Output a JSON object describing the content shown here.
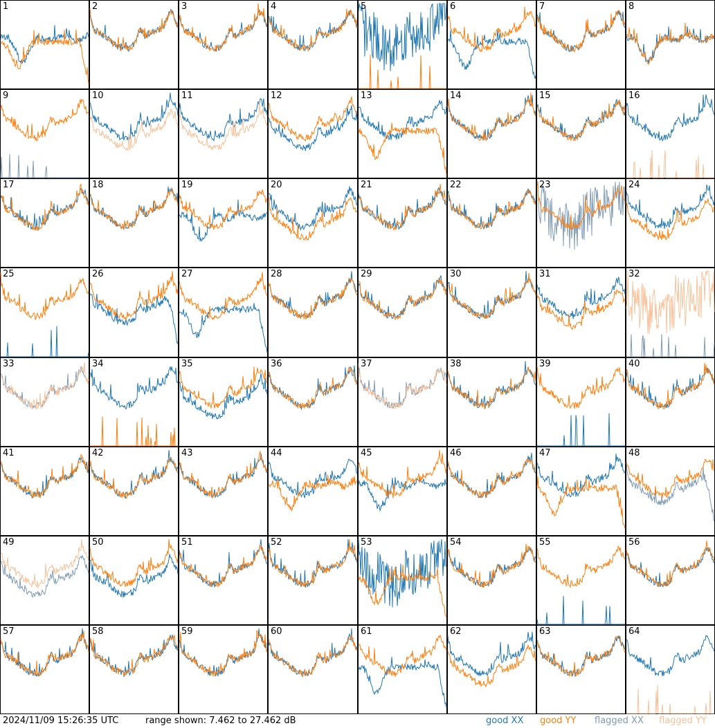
{
  "footer": {
    "timestamp": "2024/11/09 15:26:35 UTC",
    "range_text": "range shown: 7.462 to 27.462 dB"
  },
  "legend": [
    {
      "key": "good_xx",
      "label": "good XX",
      "color": "#1f77b4"
    },
    {
      "key": "good_yy",
      "label": "good YY",
      "color": "#ff7f0e"
    },
    {
      "key": "flagged_xx",
      "label": "flagged XX",
      "color": "#7f9bb5"
    },
    {
      "key": "flagged_yy",
      "label": "flagged YY",
      "color": "#f8c29a"
    }
  ],
  "chart_data": {
    "type": "line",
    "ylim": [
      7.462,
      27.462
    ],
    "ylabel": "dB",
    "grid": false,
    "panels_per_row": 8,
    "panels": [
      {
        "id": "1",
        "xx": "good",
        "yy": "good",
        "xx_shape": "dip",
        "yy_shape": "dip_drop"
      },
      {
        "id": "2",
        "xx": "good",
        "yy": "good",
        "xx_shape": "normal",
        "yy_shape": "normal"
      },
      {
        "id": "3",
        "xx": "good",
        "yy": "good",
        "xx_shape": "normal",
        "yy_shape": "normal"
      },
      {
        "id": "4",
        "xx": "good",
        "yy": "good",
        "xx_shape": "normal",
        "yy_shape": "normal"
      },
      {
        "id": "5",
        "xx": "good",
        "yy": "good",
        "xx_shape": "noisy",
        "yy_shape": "spikes"
      },
      {
        "id": "6",
        "xx": "good",
        "yy": "good",
        "xx_shape": "dip_drop",
        "yy_shape": "normal"
      },
      {
        "id": "7",
        "xx": "good",
        "yy": "good",
        "xx_shape": "normal",
        "yy_shape": "normal"
      },
      {
        "id": "8",
        "xx": "good",
        "yy": "good",
        "xx_shape": "dip",
        "yy_shape": "dip"
      },
      {
        "id": "9",
        "xx": "flagged",
        "yy": "good",
        "xx_shape": "spikes",
        "yy_shape": "normal"
      },
      {
        "id": "10",
        "xx": "good",
        "yy": "flagged",
        "xx_shape": "normal",
        "yy_shape": "low"
      },
      {
        "id": "11",
        "xx": "good",
        "yy": "flagged",
        "xx_shape": "normal",
        "yy_shape": "low"
      },
      {
        "id": "12",
        "xx": "good",
        "yy": "good",
        "xx_shape": "low",
        "yy_shape": "normal"
      },
      {
        "id": "13",
        "xx": "good",
        "yy": "good",
        "xx_shape": "normal",
        "yy_shape": "dip_drop"
      },
      {
        "id": "14",
        "xx": "good",
        "yy": "good",
        "xx_shape": "normal",
        "yy_shape": "normal"
      },
      {
        "id": "15",
        "xx": "good",
        "yy": "good",
        "xx_shape": "normal",
        "yy_shape": "normal"
      },
      {
        "id": "16",
        "xx": "good",
        "yy": "flagged",
        "xx_shape": "normal",
        "yy_shape": "spikes"
      },
      {
        "id": "17",
        "xx": "good",
        "yy": "good",
        "xx_shape": "normal",
        "yy_shape": "normal"
      },
      {
        "id": "18",
        "xx": "good",
        "yy": "good",
        "xx_shape": "normal",
        "yy_shape": "normal"
      },
      {
        "id": "19",
        "xx": "good",
        "yy": "good",
        "xx_shape": "dip",
        "yy_shape": "normal"
      },
      {
        "id": "20",
        "xx": "good",
        "yy": "good",
        "xx_shape": "normal",
        "yy_shape": "low"
      },
      {
        "id": "21",
        "xx": "good",
        "yy": "good",
        "xx_shape": "normal",
        "yy_shape": "normal"
      },
      {
        "id": "22",
        "xx": "good",
        "yy": "good",
        "xx_shape": "normal",
        "yy_shape": "normal"
      },
      {
        "id": "23",
        "xx": "flagged",
        "yy": "good",
        "xx_shape": "noisy",
        "yy_shape": "normal"
      },
      {
        "id": "24",
        "xx": "good",
        "yy": "good",
        "xx_shape": "normal",
        "yy_shape": "low"
      },
      {
        "id": "25",
        "xx": "good",
        "yy": "good",
        "xx_shape": "spikes",
        "yy_shape": "normal"
      },
      {
        "id": "26",
        "xx": "good",
        "yy": "good",
        "xx_shape": "drop",
        "yy_shape": "normal"
      },
      {
        "id": "27",
        "xx": "good",
        "yy": "good",
        "xx_shape": "dip_drop",
        "yy_shape": "normal"
      },
      {
        "id": "28",
        "xx": "good",
        "yy": "good",
        "xx_shape": "normal",
        "yy_shape": "normal"
      },
      {
        "id": "29",
        "xx": "good",
        "yy": "good",
        "xx_shape": "normal",
        "yy_shape": "normal"
      },
      {
        "id": "30",
        "xx": "good",
        "yy": "good",
        "xx_shape": "normal",
        "yy_shape": "normal"
      },
      {
        "id": "31",
        "xx": "good",
        "yy": "good",
        "xx_shape": "normal",
        "yy_shape": "low"
      },
      {
        "id": "32",
        "xx": "flagged",
        "yy": "flagged",
        "xx_shape": "spikes",
        "yy_shape": "noisy"
      },
      {
        "id": "33",
        "xx": "flagged",
        "yy": "flagged",
        "xx_shape": "normal",
        "yy_shape": "normal"
      },
      {
        "id": "34",
        "xx": "good",
        "yy": "good",
        "xx_shape": "normal",
        "yy_shape": "spikes"
      },
      {
        "id": "35",
        "xx": "good",
        "yy": "good",
        "xx_shape": "low",
        "yy_shape": "normal"
      },
      {
        "id": "36",
        "xx": "good",
        "yy": "good",
        "xx_shape": "normal",
        "yy_shape": "normal"
      },
      {
        "id": "37",
        "xx": "flagged",
        "yy": "flagged",
        "xx_shape": "normal",
        "yy_shape": "normal"
      },
      {
        "id": "38",
        "xx": "good",
        "yy": "good",
        "xx_shape": "normal",
        "yy_shape": "normal"
      },
      {
        "id": "39",
        "xx": "good",
        "yy": "good",
        "xx_shape": "spikes",
        "yy_shape": "normal"
      },
      {
        "id": "40",
        "xx": "good",
        "yy": "good",
        "xx_shape": "normal",
        "yy_shape": "normal"
      },
      {
        "id": "41",
        "xx": "good",
        "yy": "good",
        "xx_shape": "normal",
        "yy_shape": "normal"
      },
      {
        "id": "42",
        "xx": "good",
        "yy": "good",
        "xx_shape": "normal",
        "yy_shape": "normal"
      },
      {
        "id": "43",
        "xx": "good",
        "yy": "good",
        "xx_shape": "normal",
        "yy_shape": "normal"
      },
      {
        "id": "44",
        "xx": "good",
        "yy": "good",
        "xx_shape": "normal",
        "yy_shape": "dip"
      },
      {
        "id": "45",
        "xx": "good",
        "yy": "good",
        "xx_shape": "dip",
        "yy_shape": "normal"
      },
      {
        "id": "46",
        "xx": "good",
        "yy": "good",
        "xx_shape": "normal",
        "yy_shape": "normal"
      },
      {
        "id": "47",
        "xx": "good",
        "yy": "good",
        "xx_shape": "normal",
        "yy_shape": "dip_drop"
      },
      {
        "id": "48",
        "xx": "flagged",
        "yy": "good",
        "xx_shape": "drop",
        "yy_shape": "normal"
      },
      {
        "id": "49",
        "xx": "flagged",
        "yy": "flagged",
        "xx_shape": "low",
        "yy_shape": "normal"
      },
      {
        "id": "50",
        "xx": "good",
        "yy": "good",
        "xx_shape": "low",
        "yy_shape": "normal"
      },
      {
        "id": "51",
        "xx": "good",
        "yy": "good",
        "xx_shape": "normal",
        "yy_shape": "normal"
      },
      {
        "id": "52",
        "xx": "good",
        "yy": "good",
        "xx_shape": "normal",
        "yy_shape": "normal"
      },
      {
        "id": "53",
        "xx": "good",
        "yy": "good",
        "xx_shape": "noisy",
        "yy_shape": "dip_drop"
      },
      {
        "id": "54",
        "xx": "good",
        "yy": "good",
        "xx_shape": "normal",
        "yy_shape": "normal"
      },
      {
        "id": "55",
        "xx": "good",
        "yy": "good",
        "xx_shape": "spikes",
        "yy_shape": "normal"
      },
      {
        "id": "56",
        "xx": "good",
        "yy": "good",
        "xx_shape": "normal",
        "yy_shape": "normal"
      },
      {
        "id": "57",
        "xx": "good",
        "yy": "good",
        "xx_shape": "normal",
        "yy_shape": "normal"
      },
      {
        "id": "58",
        "xx": "good",
        "yy": "good",
        "xx_shape": "normal",
        "yy_shape": "normal"
      },
      {
        "id": "59",
        "xx": "good",
        "yy": "good",
        "xx_shape": "normal",
        "yy_shape": "normal"
      },
      {
        "id": "60",
        "xx": "good",
        "yy": "good",
        "xx_shape": "normal",
        "yy_shape": "normal"
      },
      {
        "id": "61",
        "xx": "good",
        "yy": "good",
        "xx_shape": "dip_drop",
        "yy_shape": "normal"
      },
      {
        "id": "62",
        "xx": "good",
        "yy": "good",
        "xx_shape": "normal",
        "yy_shape": "low"
      },
      {
        "id": "63",
        "xx": "good",
        "yy": "good",
        "xx_shape": "normal",
        "yy_shape": "normal"
      },
      {
        "id": "64",
        "xx": "good",
        "yy": "flagged",
        "xx_shape": "normal",
        "yy_shape": "spikes"
      }
    ]
  }
}
